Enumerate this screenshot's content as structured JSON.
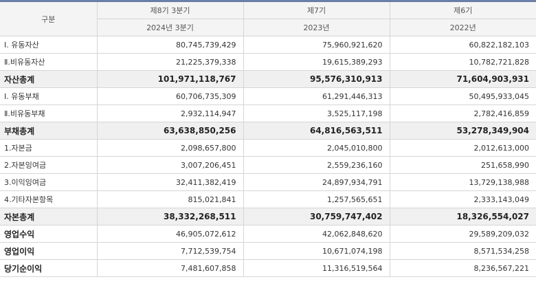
{
  "header": {
    "category": "구분",
    "periods": [
      "제8기 3분기",
      "제7기",
      "제6기"
    ],
    "years": [
      "2024년 3분기",
      "2023년",
      "2022년"
    ]
  },
  "rows": [
    {
      "label": "Ⅰ. 유동자산",
      "values": [
        "80,745,739,429",
        "75,960,921,620",
        "60,822,182,103"
      ],
      "style": "normal"
    },
    {
      "label": "Ⅱ.비유동자산",
      "values": [
        "21,225,379,338",
        "19,615,389,293",
        "10,782,721,828"
      ],
      "style": "normal"
    },
    {
      "label": "자산총계",
      "values": [
        "101,971,118,767",
        "95,576,310,913",
        "71,604,903,931"
      ],
      "style": "highlight"
    },
    {
      "label": "Ⅰ. 유동부채",
      "values": [
        "60,706,735,309",
        "61,291,446,313",
        "50,495,933,045"
      ],
      "style": "normal"
    },
    {
      "label": "Ⅱ.비유동부채",
      "values": [
        "2,932,114,947",
        "3,525,117,198",
        "2,782,416,859"
      ],
      "style": "normal"
    },
    {
      "label": "부채총계",
      "values": [
        "63,638,850,256",
        "64,816,563,511",
        "53,278,349,904"
      ],
      "style": "highlight"
    },
    {
      "label": "1.자본금",
      "values": [
        "2,098,657,800",
        "2,045,010,800",
        "2,012,613,000"
      ],
      "style": "normal"
    },
    {
      "label": "2.자본잉여금",
      "values": [
        "3,007,206,451",
        "2,559,236,160",
        "251,658,990"
      ],
      "style": "normal"
    },
    {
      "label": "3.이익잉여금",
      "values": [
        "32,411,382,419",
        "24,897,934,791",
        "13,729,138,988"
      ],
      "style": "normal"
    },
    {
      "label": "4.기타자본항목",
      "values": [
        "815,021,841",
        "1,257,565,651",
        "2,333,143,049"
      ],
      "style": "normal"
    },
    {
      "label": "자본총계",
      "values": [
        "38,332,268,511",
        "30,759,747,402",
        "18,326,554,027"
      ],
      "style": "highlight"
    },
    {
      "label": "영업수익",
      "values": [
        "46,905,072,612",
        "42,062,848,620",
        "29,589,209,032"
      ],
      "style": "bold"
    },
    {
      "label": "영업이익",
      "values": [
        "7,712,539,754",
        "10,671,074,198",
        "8,571,534,258"
      ],
      "style": "bold"
    },
    {
      "label": "당기순이익",
      "values": [
        "7,481,607,858",
        "11,316,519,564",
        "8,236,567,221"
      ],
      "style": "bold"
    }
  ]
}
